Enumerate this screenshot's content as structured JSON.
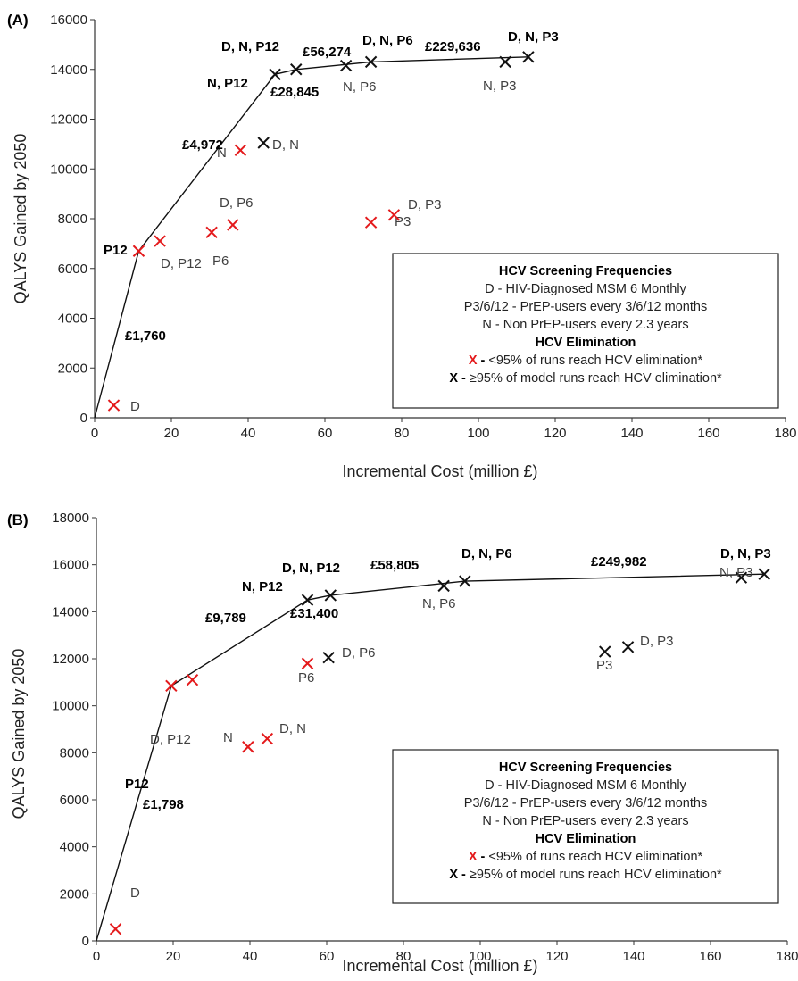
{
  "chart_data": [
    {
      "type": "scatter",
      "panel_label": "(A)",
      "xlabel": "Incremental Cost (million £)",
      "ylabel": "QALYS Gained by 2050",
      "xlim": [
        0,
        180
      ],
      "ylim": [
        0,
        16000
      ],
      "x_ticks": [
        0,
        20,
        40,
        60,
        80,
        100,
        120,
        140,
        160,
        180
      ],
      "y_ticks": [
        0,
        2000,
        4000,
        6000,
        8000,
        10000,
        12000,
        14000,
        16000
      ],
      "grid": false,
      "frontier": [
        {
          "x": 0,
          "y": 0
        },
        {
          "x": 11.5,
          "y": 6700
        },
        {
          "x": 47,
          "y": 13800
        },
        {
          "x": 52.5,
          "y": 14000
        },
        {
          "x": 72,
          "y": 14300
        },
        {
          "x": 113,
          "y": 14500
        }
      ],
      "points": [
        {
          "label": "D",
          "x": 5,
          "y": 500,
          "status": "below95"
        },
        {
          "label": "P12",
          "x": 11.5,
          "y": 6700,
          "status": "below95"
        },
        {
          "label": "D, P12",
          "x": 17,
          "y": 7100,
          "status": "below95"
        },
        {
          "label": "P6",
          "x": 30.5,
          "y": 7450,
          "status": "below95"
        },
        {
          "label": "D, P6",
          "x": 36,
          "y": 7750,
          "status": "below95"
        },
        {
          "label": "N",
          "x": 38,
          "y": 10750,
          "status": "below95"
        },
        {
          "label": "D, N",
          "x": 44,
          "y": 11050,
          "status": "atleast95"
        },
        {
          "label": "N, P12",
          "x": 47,
          "y": 13800,
          "status": "atleast95"
        },
        {
          "label": "D, N, P12",
          "x": 52.5,
          "y": 14000,
          "status": "atleast95"
        },
        {
          "label": "N, P6",
          "x": 65.5,
          "y": 14150,
          "status": "atleast95"
        },
        {
          "label": "D, N, P6",
          "x": 72,
          "y": 14300,
          "status": "atleast95"
        },
        {
          "label": "P3",
          "x": 72,
          "y": 7850,
          "status": "below95"
        },
        {
          "label": "D, P3",
          "x": 78,
          "y": 8150,
          "status": "below95"
        },
        {
          "label": "N, P3",
          "x": 107,
          "y": 14300,
          "status": "atleast95"
        },
        {
          "label": "D, N, P3",
          "x": 113,
          "y": 14500,
          "status": "atleast95"
        }
      ],
      "icers": [
        {
          "text": "£1,760"
        },
        {
          "text": "£4,972"
        },
        {
          "text": "£28,845"
        },
        {
          "text": "£56,274"
        },
        {
          "text": "£229,636"
        }
      ],
      "legend": {
        "placement": "bottom-right",
        "title": "HCV Screening Frequencies",
        "lines": [
          "D - HIV-Diagnosed MSM 6 Monthly",
          "P3/6/12 - PrEP-users every 3/6/12 months",
          "N - Non PrEP-users every 2.3 years"
        ],
        "subtitle": "HCV Elimination",
        "items": [
          {
            "marker": "X",
            "connector": " - ",
            "text": "<95% of runs reach HCV elimination*",
            "color": "#e41a1c"
          },
          {
            "marker": "X",
            "connector": " - ",
            "text": "≥95% of model runs reach HCV elimination*",
            "color": "#000000"
          }
        ]
      }
    },
    {
      "type": "scatter",
      "panel_label": "(B)",
      "xlabel": "Incremental Cost (million £)",
      "ylabel": "QALYS Gained by 2050",
      "xlim": [
        0,
        180
      ],
      "ylim": [
        0,
        18000
      ],
      "x_ticks": [
        0,
        20,
        40,
        60,
        80,
        100,
        120,
        140,
        160,
        180
      ],
      "y_ticks": [
        0,
        2000,
        4000,
        6000,
        8000,
        10000,
        12000,
        14000,
        16000,
        18000
      ],
      "grid": false,
      "frontier": [
        {
          "x": 0,
          "y": 0
        },
        {
          "x": 19.5,
          "y": 10850
        },
        {
          "x": 55,
          "y": 14500
        },
        {
          "x": 61,
          "y": 14700
        },
        {
          "x": 96,
          "y": 15300
        },
        {
          "x": 174,
          "y": 15600
        }
      ],
      "points": [
        {
          "label": "D",
          "x": 5,
          "y": 500,
          "status": "below95"
        },
        {
          "label": "P12",
          "x": 19.5,
          "y": 10850,
          "status": "below95"
        },
        {
          "label": "D, P12",
          "x": 25,
          "y": 11100,
          "status": "below95"
        },
        {
          "label": "N",
          "x": 39.5,
          "y": 8250,
          "status": "below95"
        },
        {
          "label": "D, N",
          "x": 44.5,
          "y": 8600,
          "status": "below95"
        },
        {
          "label": "P6",
          "x": 55,
          "y": 11800,
          "status": "below95"
        },
        {
          "label": "D, P6",
          "x": 60.5,
          "y": 12050,
          "status": "atleast95"
        },
        {
          "label": "N, P12",
          "x": 55,
          "y": 14500,
          "status": "atleast95"
        },
        {
          "label": "D, N, P12",
          "x": 61,
          "y": 14700,
          "status": "atleast95"
        },
        {
          "label": "N, P6",
          "x": 90.5,
          "y": 15100,
          "status": "atleast95"
        },
        {
          "label": "D, N, P6",
          "x": 96,
          "y": 15300,
          "status": "atleast95"
        },
        {
          "label": "P3",
          "x": 132.5,
          "y": 12300,
          "status": "atleast95"
        },
        {
          "label": "D, P3",
          "x": 138.5,
          "y": 12500,
          "status": "atleast95"
        },
        {
          "label": "N, P3",
          "x": 168,
          "y": 15450,
          "status": "atleast95"
        },
        {
          "label": "D, N, P3",
          "x": 174,
          "y": 15600,
          "status": "atleast95"
        }
      ],
      "icers": [
        {
          "text": "£1,798"
        },
        {
          "text": "£9,789"
        },
        {
          "text": "£31,400"
        },
        {
          "text": "£58,805"
        },
        {
          "text": "£249,982"
        }
      ],
      "legend": {
        "placement": "bottom-right",
        "title": "HCV Screening Frequencies",
        "lines": [
          "D - HIV-Diagnosed MSM 6 Monthly",
          "P3/6/12 - PrEP-users every 3/6/12 months",
          "N - Non PrEP-users every 2.3 years"
        ],
        "subtitle": "HCV Elimination",
        "items": [
          {
            "marker": "X",
            "connector": " - ",
            "text": "<95% of runs reach HCV elimination*",
            "color": "#e41a1c"
          },
          {
            "marker": "X",
            "connector": " - ",
            "text": "≥95% of model runs reach HCV elimination*",
            "color": "#000000"
          }
        ]
      }
    }
  ]
}
